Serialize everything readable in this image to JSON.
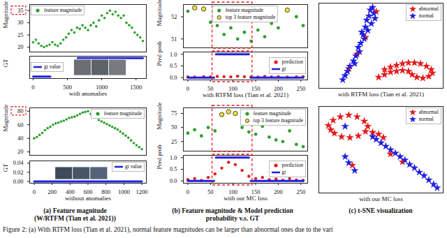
{
  "chart_data": [
    {
      "type": "scatter",
      "ylabel": "Magnitude",
      "xlim": [
        -50,
        1650
      ],
      "ylim": [
        18,
        37.5
      ],
      "yticks": [
        20,
        25,
        30,
        35
      ],
      "tick_labels": "y",
      "legend": "top-left",
      "series": [
        {
          "name": "feature magnitude",
          "color": "#2ca02c",
          "marker": "circle",
          "x": [
            0,
            40,
            80,
            120,
            160,
            200,
            240,
            280,
            320,
            360,
            400,
            440,
            480,
            520,
            560,
            600,
            640,
            680,
            720,
            760,
            800,
            840,
            880,
            920,
            960,
            1000,
            1040,
            1080,
            1120,
            1160,
            1200,
            1240,
            1280,
            1320,
            1360,
            1400,
            1440,
            1480,
            1520,
            1560,
            1600
          ],
          "values": [
            22,
            23,
            21.5,
            20.5,
            20,
            20.5,
            21,
            22,
            21,
            20.5,
            21.5,
            23,
            24,
            25.5,
            27,
            26,
            28,
            27.5,
            29,
            28,
            27,
            29,
            30,
            28.5,
            31,
            33,
            32,
            34,
            35,
            33.5,
            34.5,
            33,
            32,
            33,
            30,
            29,
            28,
            26,
            25,
            24,
            22.5
          ]
        }
      ]
    },
    {
      "type": "line",
      "ylabel": "GT",
      "xlabel": "with anomalies",
      "xlim": [
        -50,
        1650
      ],
      "ylim": [
        -0.1,
        1.1
      ],
      "xticks": [
        0,
        500,
        1000,
        1500
      ],
      "tick_labels": "x",
      "legend": "center-left",
      "series": [
        {
          "name": "gt value",
          "color": "#1f1fe0",
          "x": [
            0,
            250,
            450,
            650,
            1600
          ],
          "values": [
            0,
            0,
            null,
            1,
            1
          ]
        }
      ]
    },
    {
      "type": "scatter",
      "ylabel": "Magnitude",
      "xlim": [
        -50,
        1250
      ],
      "ylim": [
        15,
        85
      ],
      "yticks": [
        20,
        40,
        60,
        80
      ],
      "tick_labels": "y",
      "legend": "top-right",
      "series": [
        {
          "name": "feature magnitude",
          "color": "#2ca02c",
          "marker": "circle",
          "x": [
            0,
            30,
            60,
            90,
            120,
            150,
            180,
            210,
            240,
            270,
            300,
            330,
            360,
            390,
            420,
            450,
            480,
            510,
            540,
            570,
            600,
            630,
            660,
            690,
            720,
            750,
            780,
            810,
            840,
            870,
            900,
            930,
            960,
            990,
            1020,
            1050,
            1080,
            1110,
            1140,
            1170,
            1200
          ],
          "values": [
            40,
            42,
            45,
            48,
            52,
            55,
            57,
            60,
            62,
            63,
            65,
            66,
            68,
            70,
            71,
            72,
            74,
            76,
            78,
            79,
            80,
            76,
            73,
            71,
            67,
            65,
            63,
            61,
            59,
            57,
            55,
            53,
            50,
            47,
            44,
            41,
            37,
            33,
            30,
            27,
            24
          ]
        }
      ]
    },
    {
      "type": "line",
      "ylabel": "GT",
      "xlabel": "without anomalies",
      "xlim": [
        -50,
        1250
      ],
      "ylim": [
        -0.004,
        0.045
      ],
      "yticks": [
        {
          "value": 0,
          "label": "0.00"
        },
        {
          "value": 0.02,
          "label": "0.02"
        },
        {
          "value": 0.04,
          "label": "0.04"
        }
      ],
      "xticks": [
        0,
        200,
        400,
        600,
        800,
        1000,
        1200
      ],
      "legend": "top-right",
      "series": [
        {
          "name": "gt value",
          "color": "#1f1fe0",
          "x": [
            0,
            1200
          ],
          "values": [
            0,
            0
          ]
        }
      ]
    },
    {
      "type": "scatter",
      "ylabel": "Magnitude",
      "xlim": [
        -10,
        265
      ],
      "ylim": [
        50.6,
        52.55
      ],
      "yticks": [
        51,
        52
      ],
      "tick_labels": "y",
      "legend": "top-center",
      "series": [
        {
          "name": "feature magnitude",
          "color": "#2ca02c",
          "marker": "circle",
          "x": [
            0,
            15,
            35,
            50,
            65,
            80,
            95,
            110,
            125,
            140,
            155,
            170,
            185,
            200,
            220,
            240,
            255
          ],
          "values": [
            52.25,
            52.4,
            52.35,
            51.75,
            51.6,
            51.2,
            51.5,
            51.0,
            51.3,
            50.9,
            51.4,
            51.1,
            51.7,
            51.5,
            52.3,
            52.0,
            51.6
          ]
        },
        {
          "name": "top 3 feature magnitude",
          "color": "#f2e33a",
          "marker": "edged_circle",
          "x": [
            15,
            35,
            220
          ],
          "values": [
            52.4,
            52.35,
            52.3
          ]
        }
      ]
    },
    {
      "type": "scatter",
      "ylabel": "Pred prob",
      "xlabel": "with RTFM loss (Tian et al. 2021)",
      "xlim": [
        -10,
        265
      ],
      "ylim": [
        -0.1,
        1.1
      ],
      "yticks": [
        {
          "value": 0,
          "label": "0.0"
        },
        {
          "value": 0.5,
          "label": "0.5"
        },
        {
          "value": 1,
          "label": "1.0"
        }
      ],
      "xticks": [
        0,
        50,
        100,
        150,
        200,
        250
      ],
      "legend": "center-right",
      "series": [
        {
          "name": "prediction",
          "color": "#e41a1c",
          "marker": "circle",
          "x": [
            0,
            15,
            35,
            50,
            65,
            80,
            95,
            110,
            125,
            140,
            155,
            170,
            185,
            200,
            220,
            240,
            255
          ],
          "values": [
            0.03,
            0.02,
            0.04,
            0.03,
            0.05,
            0.04,
            0.03,
            0.06,
            0.04,
            0.03,
            0.02,
            0.05,
            0.03,
            0.04,
            0.02,
            0.03,
            0.04
          ]
        },
        {
          "name": "gt",
          "color": "#1f1fe0",
          "type": "line",
          "x": [
            0,
            58,
            60,
            62,
            135,
            137,
            139,
            255
          ],
          "values": [
            0,
            0,
            null,
            1,
            1,
            null,
            0,
            0
          ]
        }
      ]
    },
    {
      "type": "scatter",
      "ylabel": "Magnitude",
      "xlim": [
        -10,
        265
      ],
      "ylim": [
        8,
        85
      ],
      "yticks": [
        25,
        50,
        75
      ],
      "tick_labels": "y",
      "legend": "top-right",
      "series": [
        {
          "name": "feature magnitude",
          "color": "#2ca02c",
          "marker": "circle",
          "x": [
            0,
            15,
            30,
            45,
            60,
            75,
            90,
            105,
            120,
            135,
            150,
            165,
            180,
            195,
            210,
            225,
            240,
            255
          ],
          "values": [
            40,
            46,
            35,
            50,
            44,
            73,
            78,
            75,
            50,
            42,
            38,
            52,
            33,
            28,
            25,
            44,
            20,
            16
          ]
        },
        {
          "name": "top 3 feature magnitude",
          "color": "#f2e33a",
          "marker": "edged_circle",
          "x": [
            75,
            90,
            105
          ],
          "values": [
            73,
            78,
            75
          ]
        }
      ]
    },
    {
      "type": "scatter",
      "ylabel": "Pred prob",
      "xlabel": "with our MC loss",
      "xlim": [
        -10,
        265
      ],
      "ylim": [
        -0.1,
        1.1
      ],
      "yticks": [
        {
          "value": 0,
          "label": "0.0"
        },
        {
          "value": 0.5,
          "label": "0.5"
        },
        {
          "value": 1,
          "label": "1.0"
        }
      ],
      "xticks": [
        0,
        50,
        100,
        150,
        200,
        250
      ],
      "legend": "center-right",
      "series": [
        {
          "name": "prediction",
          "color": "#e41a1c",
          "marker": "circle",
          "x": [
            0,
            15,
            30,
            45,
            60,
            75,
            90,
            105,
            120,
            135,
            150,
            165,
            180,
            195,
            210,
            225,
            240,
            255
          ],
          "values": [
            0.05,
            0.1,
            0.02,
            0.15,
            0.3,
            0.55,
            0.8,
            0.7,
            0.45,
            0.2,
            0.1,
            0.15,
            0.05,
            0.08,
            0.03,
            0.1,
            0.04,
            0.02
          ]
        },
        {
          "name": "gt",
          "color": "#1f1fe0",
          "type": "line",
          "x": [
            0,
            58,
            60,
            62,
            135,
            137,
            139,
            255
          ],
          "values": [
            0,
            0,
            null,
            1,
            1,
            null,
            0,
            0
          ]
        }
      ]
    },
    {
      "type": "scatter",
      "xlabel": "with RTFM loss (Tian et al. 2021)",
      "xlim": [
        0,
        10.4
      ],
      "ylim": [
        0,
        10
      ],
      "tick_labels": false,
      "legend": "top-right",
      "series": [
        {
          "name": "abnormal",
          "color": "#e41a1c",
          "marker": "star",
          "x": [
            4.8,
            3.9,
            3.2,
            2.5,
            5.5,
            6.0,
            6.5,
            7.0,
            7.5,
            8.0,
            8.5,
            9.0,
            9.4,
            9.5,
            9.2,
            8.7,
            8.2,
            7.8,
            7.5,
            7.0,
            6.5,
            6.0,
            5.5,
            5.0
          ],
          "values": [
            9.0,
            6.0,
            4.0,
            2.3,
            2.2,
            2.5,
            2.7,
            2.9,
            3.0,
            3.0,
            2.9,
            2.6,
            2.2,
            1.8,
            1.4,
            1.2,
            1.3,
            1.6,
            2.0,
            2.1,
            2.0,
            1.9,
            1.6,
            1.3
          ]
        },
        {
          "name": "normal",
          "color": "#1f1fe0",
          "marker": "star",
          "x": [
            4.5,
            4.3,
            4.6,
            4.2,
            4.0,
            4.4,
            3.9,
            4.1,
            3.7,
            3.8,
            3.5,
            3.3,
            3.4,
            3.1,
            2.9,
            2.6,
            2.4,
            2.2,
            2.0,
            3.6,
            4.7,
            3.0
          ],
          "values": [
            9.5,
            9.2,
            8.8,
            8.5,
            8.0,
            7.6,
            7.2,
            6.8,
            6.3,
            5.8,
            5.3,
            4.8,
            4.3,
            3.8,
            3.2,
            2.6,
            2.0,
            1.5,
            1.0,
            6.6,
            8.2,
            2.9
          ]
        }
      ]
    },
    {
      "type": "scatter",
      "xlabel": "with our MC loss",
      "xlim": [
        0,
        10.4
      ],
      "ylim": [
        0,
        10
      ],
      "tick_labels": false,
      "legend": "top-right",
      "series": [
        {
          "name": "abnormal",
          "color": "#e41a1c",
          "marker": "star",
          "x": [
            0.8,
            1.2,
            1.8,
            2.5,
            3.2,
            3.8,
            4.1,
            3.9,
            3.3,
            2.6,
            1.9,
            1.3,
            1.0,
            4.5,
            5.0,
            5.4,
            6.0,
            7.0,
            2.8
          ],
          "values": [
            7.8,
            8.4,
            8.8,
            9.0,
            8.8,
            8.3,
            7.7,
            7.1,
            6.6,
            6.4,
            6.5,
            6.9,
            7.3,
            7.0,
            6.8,
            6.4,
            4.5,
            3.6,
            3.2
          ]
        },
        {
          "name": "normal",
          "color": "#1f1fe0",
          "marker": "star",
          "x": [
            4.8,
            5.2,
            5.6,
            6.0,
            6.4,
            6.8,
            7.2,
            7.6,
            8.0,
            8.4,
            8.8,
            9.2,
            9.6,
            9.9,
            2.5,
            2.2,
            3.0,
            2.2,
            4.5
          ],
          "values": [
            6.2,
            5.8,
            5.4,
            5.0,
            4.6,
            4.2,
            3.8,
            3.3,
            2.9,
            2.4,
            2.0,
            1.5,
            1.0,
            0.6,
            3.5,
            4.2,
            2.6,
            7.7,
            6.5
          ]
        }
      ]
    }
  ],
  "figure": {
    "panel_captions": [
      [
        "(a) Feature magnitude",
        "(W/RTFM (Tian et al. 2021))"
      ],
      [
        "(b) Feature magnitude & Model prediction",
        "probability v.s. GT"
      ],
      [
        "(c) t-SNE visualization"
      ]
    ],
    "caption": "Figure 2: (a) With RTFM loss (Tian et al. 2021), normal feature magnitudes can be larger than abnormal ones due to the vari"
  }
}
